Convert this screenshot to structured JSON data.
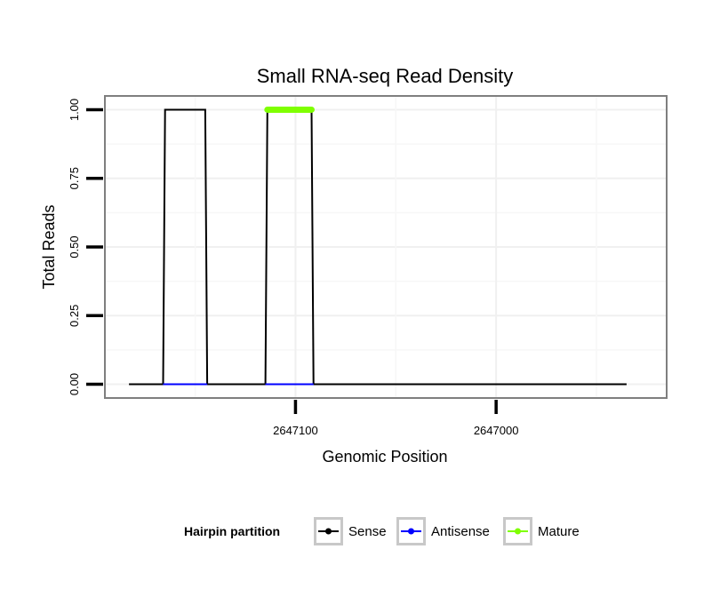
{
  "chart_data": {
    "type": "line",
    "title": "Small RNA-seq Read Density",
    "xlabel": "Genomic Position",
    "ylabel": "Total Reads",
    "x_reversed": true,
    "xlim": [
      2647195,
      2646915
    ],
    "ylim": [
      -0.05,
      1.05
    ],
    "x_ticks": [
      2647100,
      2647000
    ],
    "x_tick_labels": [
      "2647100",
      "2647000"
    ],
    "y_ticks": [
      0,
      0.25,
      0.5,
      0.75,
      1
    ],
    "y_tick_labels": [
      "0.00",
      "0.25",
      "0.50",
      "0.75",
      "1.00"
    ],
    "grid": true,
    "legend": {
      "position": "bottom",
      "title": "Hairpin partition",
      "entries": [
        "Sense",
        "Antisense",
        "Mature"
      ]
    },
    "series": [
      {
        "name": "Sense",
        "color": "#000000",
        "x": [
          2647183,
          2647166,
          2647165,
          2647145,
          2647144,
          2647115,
          2647114,
          2647092,
          2647091,
          2646935
        ],
        "y": [
          0,
          0,
          1,
          1,
          0,
          0,
          1,
          1,
          0,
          0
        ]
      },
      {
        "name": "Antisense",
        "color": "#0000ff",
        "x": [
          2647166,
          2647144,
          2647115,
          2647091
        ],
        "y": [
          0,
          0,
          0,
          0
        ],
        "segments": [
          [
            0,
            1
          ],
          [
            2,
            3
          ]
        ]
      },
      {
        "name": "Mature",
        "color": "#7fff00",
        "x": [
          2647114,
          2647092
        ],
        "y": [
          1,
          1
        ]
      }
    ]
  }
}
